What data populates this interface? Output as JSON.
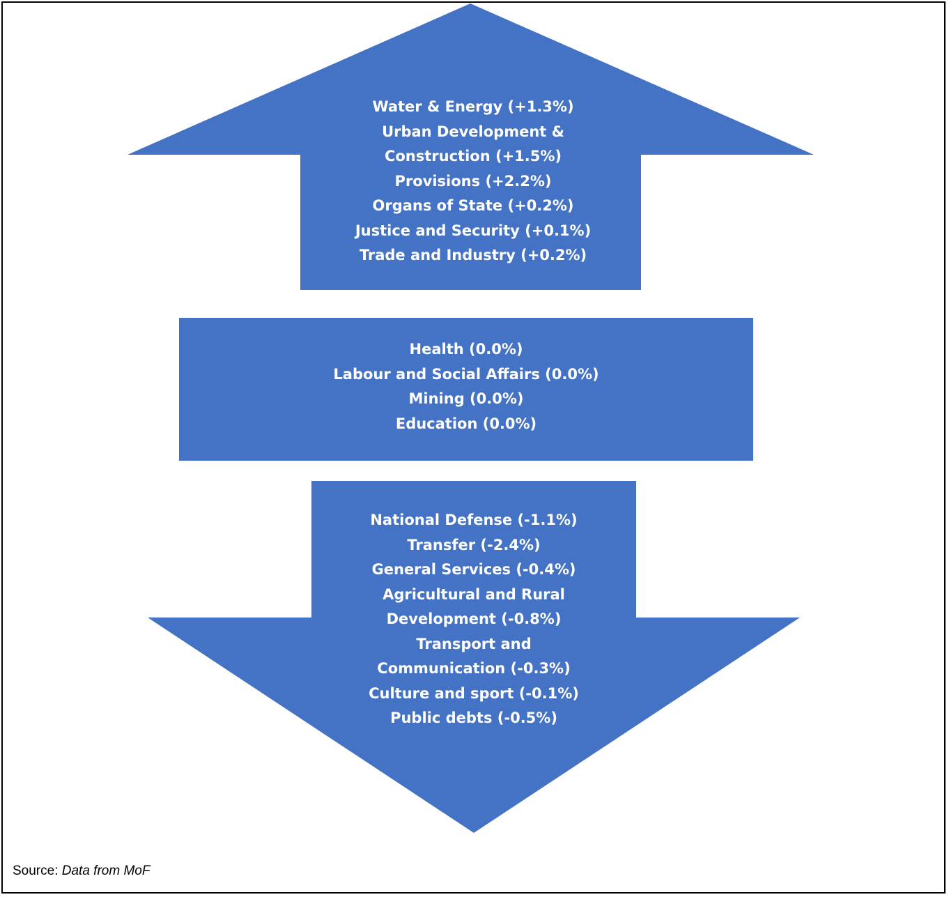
{
  "colors": {
    "shape_fill": "#4472C4",
    "text": "#FFFFFF",
    "border": "#000000"
  },
  "increase_arrow": {
    "lines": [
      "Water & Energy (+1.3%)",
      "Urban Development &",
      "Construction (+1.5%)",
      "Provisions (+2.2%)",
      "Organs of State (+0.2%)",
      "Justice and Security (+0.1%)",
      "Trade and Industry  (+0.2%)"
    ]
  },
  "unchanged_box": {
    "lines": [
      "Health (0.0%)",
      "Labour and Social Affairs (0.0%)",
      "Mining (0.0%)",
      "Education (0.0%)"
    ]
  },
  "decrease_arrow": {
    "lines": [
      "National Defense (-1.1%)",
      "Transfer (-2.4%)",
      "General Services (-0.4%)",
      "Agricultural and Rural",
      "Development (-0.8%)",
      "Transport and",
      "Communication (-0.3%)",
      "Culture and sport (-0.1%)",
      "Public debts (-0.5%)"
    ]
  },
  "source": {
    "label": "Source:",
    "text": "Data from MoF"
  }
}
